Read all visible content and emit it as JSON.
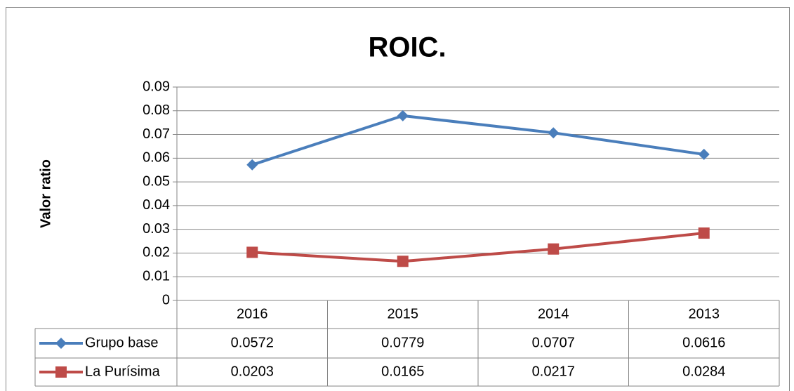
{
  "chart_data": {
    "type": "line",
    "title": "ROIC.",
    "y_label": "Valor ratio",
    "categories": [
      "2016",
      "2015",
      "2014",
      "2013"
    ],
    "series": [
      {
        "name": "Grupo base",
        "color": "#4a7ebb",
        "marker": "diamond",
        "values": [
          0.0572,
          0.0779,
          0.0707,
          0.0616
        ]
      },
      {
        "name": "La Purísima",
        "color": "#be4b48",
        "marker": "square",
        "values": [
          0.0203,
          0.0165,
          0.0217,
          0.0284
        ]
      }
    ],
    "ylim": [
      0,
      0.09
    ],
    "yticks": [
      0,
      0.01,
      0.02,
      0.03,
      0.04,
      0.05,
      0.06,
      0.07,
      0.08,
      0.09
    ],
    "grid": true,
    "data_table": true
  }
}
